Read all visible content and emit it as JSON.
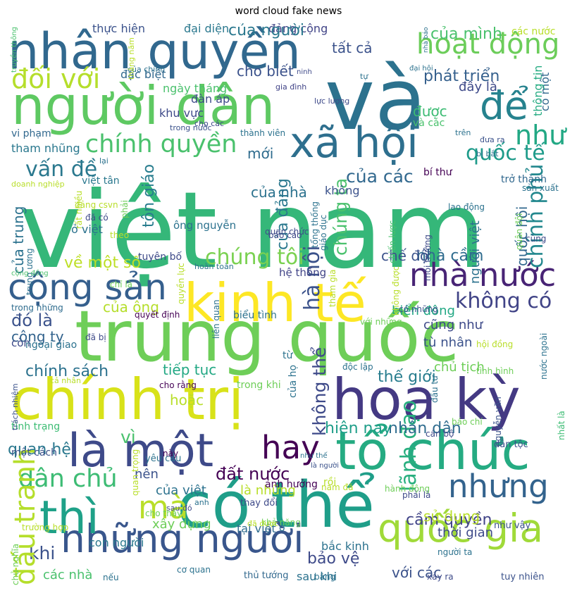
{
  "title": "word cloud fake news",
  "palette": [
    "#440154",
    "#3b528b",
    "#21908d",
    "#5dc863",
    "#fde725"
  ],
  "words": [
    {
      "t": "việt nam",
      "c": "#35b779",
      "v": false
    },
    {
      "t": "và",
      "c": "#2c728e",
      "v": false
    },
    {
      "t": "trung quốc",
      "c": "#6ece58",
      "v": false
    },
    {
      "t": "nhân quyền",
      "c": "#31688e",
      "v": false
    },
    {
      "t": "người dân",
      "c": "#5ec962",
      "v": false
    },
    {
      "t": "chính trị",
      "c": "#d8e219",
      "v": false
    },
    {
      "t": "có thể",
      "c": "#1f9e89",
      "v": false
    },
    {
      "t": "hoa kỳ",
      "c": "#443983",
      "v": false
    },
    {
      "t": "kinh tế",
      "c": "#fde725",
      "v": false
    },
    {
      "t": "tổ chức",
      "c": "#25ab82",
      "v": false
    },
    {
      "t": "là một",
      "c": "#3e4a89",
      "v": false
    },
    {
      "t": "những người",
      "c": "#39568c",
      "v": false
    },
    {
      "t": "thì",
      "c": "#1fa188",
      "v": false
    },
    {
      "t": "xã hội",
      "c": "#2e6f8e",
      "v": false
    },
    {
      "t": "để",
      "c": "#26828e",
      "v": false
    },
    {
      "t": "quốc gia",
      "c": "#a0da39",
      "v": false
    },
    {
      "t": "nhà nước",
      "c": "#482475",
      "v": false
    },
    {
      "t": "cộng sản",
      "c": "#355f8d",
      "v": false
    },
    {
      "t": "nhưng",
      "c": "#33638d",
      "v": false
    },
    {
      "t": "hoạt động",
      "c": "#6ccd5a",
      "v": false
    },
    {
      "t": "đối với",
      "c": "#b5de2b",
      "v": false
    },
    {
      "t": "chính quyền",
      "c": "#4ac16d",
      "v": false
    },
    {
      "t": "hay",
      "c": "#440154",
      "v": false
    },
    {
      "t": "mà",
      "c": "#b8de29",
      "v": false
    },
    {
      "t": "dân chủ",
      "c": "#3dbc74",
      "v": false
    },
    {
      "t": "như",
      "c": "#22a884",
      "v": false
    },
    {
      "t": "chính phủ",
      "c": "#23888e",
      "v": true
    },
    {
      "t": "lãnh đạo",
      "c": "#29af7f",
      "v": true
    },
    {
      "t": "hà nội",
      "c": "#3b528b",
      "v": true
    },
    {
      "t": "quốc tế",
      "c": "#1e9b8a",
      "v": false
    },
    {
      "t": "vấn đề",
      "c": "#2a788e",
      "v": false
    },
    {
      "t": "không có",
      "c": "#414487",
      "v": false
    },
    {
      "t": "chúng tôi",
      "c": "#7ad151",
      "v": false
    },
    {
      "t": "của các",
      "c": "#31688e",
      "v": false
    },
    {
      "t": "thế giới",
      "c": "#287d8e",
      "v": false
    },
    {
      "t": "tất cả",
      "c": "#3b528b",
      "v": false
    },
    {
      "t": "của mình",
      "c": "#4ac16d",
      "v": false
    },
    {
      "t": "phát triển",
      "c": "#35608d",
      "v": false
    },
    {
      "t": "cho biết",
      "c": "#3b528b",
      "v": false
    },
    {
      "t": "về một số",
      "c": "#bddf26",
      "v": false
    },
    {
      "t": "tiếp tục",
      "c": "#22a884",
      "v": false
    },
    {
      "t": "chính sách",
      "c": "#2c728e",
      "v": false
    },
    {
      "t": "công ty",
      "c": "#33638d",
      "v": false
    },
    {
      "t": "của ông",
      "c": "#b5de2b",
      "v": false
    },
    {
      "t": "đó là",
      "c": "#3b528b",
      "v": false
    },
    {
      "t": "nhân dân",
      "c": "#2f6c8e",
      "v": false
    },
    {
      "t": "quan hệ",
      "c": "#2a788e",
      "v": false
    },
    {
      "t": "đất nước",
      "c": "#440154",
      "v": false
    },
    {
      "t": "cầm quyền",
      "c": "#414487",
      "v": false
    },
    {
      "t": "với các",
      "c": "#3b528b",
      "v": false
    },
    {
      "t": "bảo vệ",
      "c": "#3e4a89",
      "v": false
    },
    {
      "t": "hiện nay",
      "c": "#1f9e89",
      "v": false
    },
    {
      "t": "nhà cầm",
      "c": "#2f6c8e",
      "v": false
    },
    {
      "t": "chế độ",
      "c": "#3b528b",
      "v": false
    },
    {
      "t": "cũng như",
      "c": "#3e4a89",
      "v": false
    },
    {
      "t": "tù nhân",
      "c": "#3b528b",
      "v": false
    },
    {
      "t": "chủ tịch",
      "c": "#6ece58",
      "v": false
    },
    {
      "t": "biển đông",
      "c": "#22a884",
      "v": false
    },
    {
      "t": "thời gian",
      "c": "#3e4a89",
      "v": false
    },
    {
      "t": "sau khi",
      "c": "#2c728e",
      "v": false
    },
    {
      "t": "các nhà",
      "c": "#4ac16d",
      "v": false
    },
    {
      "t": "khi",
      "c": "#3b528b",
      "v": false
    },
    {
      "t": "đấu tranh",
      "c": "#b5de2b",
      "v": true
    },
    {
      "t": "xây dựng",
      "c": "#6ece58",
      "v": false
    },
    {
      "t": "con người",
      "c": "#2a788e",
      "v": false
    },
    {
      "t": "tại việt",
      "c": "#2f6c8e",
      "v": false
    },
    {
      "t": "bắc kinh",
      "c": "#2c728e",
      "v": false
    },
    {
      "t": "người việt",
      "c": "#2c728e",
      "v": true
    },
    {
      "t": "quốc hội",
      "c": "#31688e",
      "v": true
    },
    {
      "t": "tôn giáo",
      "c": "#287d8e",
      "v": true
    },
    {
      "t": "của trung",
      "c": "#2c728e",
      "v": true
    },
    {
      "t": "của đảng",
      "c": "#2a788e",
      "v": true
    },
    {
      "t": "chúng ta",
      "c": "#4ac16d",
      "v": true
    },
    {
      "t": "không thể",
      "c": "#3e4a89",
      "v": true
    },
    {
      "t": "ở việt",
      "c": "#2c728e",
      "v": false
    },
    {
      "t": "mới",
      "c": "#2f6c8e",
      "v": false
    },
    {
      "t": "được",
      "c": "#3dbc74",
      "v": false
    },
    {
      "t": "của việt",
      "c": "#2c728e",
      "v": false
    },
    {
      "t": "là những",
      "c": "#b8de29",
      "v": false
    },
    {
      "t": "hoặc",
      "c": "#b8de29",
      "v": false
    },
    {
      "t": "vì",
      "c": "#4ac16d",
      "v": false
    },
    {
      "t": "nên",
      "c": "#3b528b",
      "v": false
    },
    {
      "t": "ngày tháng",
      "c": "#4ac16d",
      "v": false
    },
    {
      "t": "đại diện",
      "c": "#2a788e",
      "v": false
    },
    {
      "t": "thực hiện",
      "c": "#3b528b",
      "v": false
    },
    {
      "t": "đảng cộng",
      "c": "#414487",
      "v": false
    },
    {
      "t": "của người",
      "c": "#2a788e",
      "v": false
    },
    {
      "t": "các nước",
      "c": "#b8de29",
      "v": false
    },
    {
      "t": "đặc biệt",
      "c": "#31688e",
      "v": false
    },
    {
      "t": "khu vực",
      "c": "#3e4a89",
      "v": false
    },
    {
      "t": "tham nhũng",
      "c": "#2a788e",
      "v": false
    },
    {
      "t": "vi phạm",
      "c": "#31688e",
      "v": false
    },
    {
      "t": "không",
      "c": "#3b528b",
      "v": false
    },
    {
      "t": "trở thành",
      "c": "#31688e",
      "v": false
    },
    {
      "t": "bí thư",
      "c": "#440154",
      "v": false
    },
    {
      "t": "đây là",
      "c": "#3e4a89",
      "v": false
    },
    {
      "t": "có một",
      "c": "#31688e",
      "v": true
    },
    {
      "t": "thông tin",
      "c": "#25ab82",
      "v": true
    },
    {
      "t": "hệ thống",
      "c": "#414487",
      "v": false
    },
    {
      "t": "ông nguyễn",
      "c": "#2c728e",
      "v": false
    },
    {
      "t": "tuyên bố",
      "c": "#3e4a89",
      "v": false
    },
    {
      "t": "việt tân",
      "c": "#2a788e",
      "v": false
    },
    {
      "t": "còn",
      "c": "#3e4a89",
      "v": false
    },
    {
      "t": "ngoại giao",
      "c": "#2c728e",
      "v": false
    },
    {
      "t": "trong những",
      "c": "#2f6c8e",
      "v": false
    },
    {
      "t": "tình trạng",
      "c": "#3dbc74",
      "v": false
    },
    {
      "t": "một cách",
      "c": "#3b528b",
      "v": false
    },
    {
      "t": "cho rằng",
      "c": "#440154",
      "v": false
    },
    {
      "t": "trong khi",
      "c": "#6ece58",
      "v": false
    },
    {
      "t": "độc lập",
      "c": "#2c728e",
      "v": false
    },
    {
      "t": "ảnh hưởng",
      "c": "#440154",
      "v": false
    },
    {
      "t": "yêu cầu",
      "c": "#2c728e",
      "v": false
    },
    {
      "t": "dân tộc",
      "c": "#3b528b",
      "v": false
    },
    {
      "t": "thay đổi",
      "c": "#3e4a89",
      "v": false
    },
    {
      "t": "tuy nhiên",
      "c": "#3b528b",
      "v": false
    },
    {
      "t": "thủ tướng",
      "c": "#31688e",
      "v": false
    },
    {
      "t": "cơ quan",
      "c": "#2c728e",
      "v": false
    },
    {
      "t": "như vậy",
      "c": "#3b528b",
      "v": false
    },
    {
      "t": "người ta",
      "c": "#2c728e",
      "v": false
    },
    {
      "t": "biểu tình",
      "c": "#2c728e",
      "v": false
    },
    {
      "t": "quyết định",
      "c": "#440154",
      "v": false
    },
    {
      "t": "nhất là",
      "c": "#3dbc74",
      "v": true
    },
    {
      "t": "nguyễn văn",
      "c": "#3b528b",
      "v": true
    },
    {
      "t": "quân đội",
      "c": "#6ece58",
      "v": true
    },
    {
      "t": "môi trường",
      "c": "#3e4a89",
      "v": true
    },
    {
      "t": "chiến lược",
      "c": "#4ac16d",
      "v": true
    },
    {
      "t": "lao động",
      "c": "#2c728e",
      "v": false
    },
    {
      "t": "gia đình",
      "c": "#414487",
      "v": false
    },
    {
      "t": "thành viên",
      "c": "#2c728e",
      "v": false
    },
    {
      "t": "doanh nghiệp",
      "c": "#b8de29",
      "v": false
    },
    {
      "t": "trung ương",
      "c": "#2c728e",
      "v": true
    },
    {
      "t": "hoàn toàn",
      "c": "#2c728e",
      "v": false
    },
    {
      "t": "lực lượng",
      "c": "#3e4a89",
      "v": false
    },
    {
      "t": "trên",
      "c": "#2c728e",
      "v": false
    },
    {
      "t": "đưa ra",
      "c": "#3b528b",
      "v": false
    },
    {
      "t": "bị bắt",
      "c": "#2c728e",
      "v": false
    },
    {
      "t": "sản xuất",
      "c": "#2c728e",
      "v": false
    },
    {
      "t": "cho các",
      "c": "#3e4a89",
      "v": false
    },
    {
      "t": "trong nước",
      "c": "#3b528b",
      "v": false
    },
    {
      "t": "và các",
      "c": "#4ac16d",
      "v": false
    },
    {
      "t": "từ",
      "c": "#2c728e",
      "v": false
    },
    {
      "t": "của họ",
      "c": "#2c728e",
      "v": true
    },
    {
      "t": "đã bị",
      "c": "#3e4a89",
      "v": false
    },
    {
      "t": "liên quan",
      "c": "#2c728e",
      "v": true
    },
    {
      "t": "với những",
      "c": "#6ece58",
      "v": false
    },
    {
      "t": "tình hình",
      "c": "#6ece58",
      "v": false
    },
    {
      "t": "có những",
      "c": "#3b528b",
      "v": false
    },
    {
      "t": "hội đồng",
      "c": "#b8de29",
      "v": false
    },
    {
      "t": "nước ngoài",
      "c": "#2c728e",
      "v": true
    },
    {
      "t": "đầu tư",
      "c": "#2c728e",
      "v": true
    },
    {
      "t": "báo chí",
      "c": "#6ece58",
      "v": false
    },
    {
      "t": "cán bộ",
      "c": "#3e4a89",
      "v": false
    },
    {
      "t": "khả năng",
      "c": "#6ece58",
      "v": false
    },
    {
      "t": "nam đã",
      "c": "#b8de29",
      "v": false
    },
    {
      "t": "hành động",
      "c": "#6ece58",
      "v": false
    },
    {
      "t": "phải là",
      "c": "#3e4a89",
      "v": false
    },
    {
      "t": "xảy ra",
      "c": "#3e4a89",
      "v": false
    },
    {
      "t": "bằng",
      "c": "#2c728e",
      "v": false
    },
    {
      "t": "rồi",
      "c": "#b8de29",
      "v": false
    },
    {
      "t": "ở",
      "c": "#2c728e",
      "v": false
    },
    {
      "t": "sử dụng",
      "c": "#b8de29",
      "v": false
    },
    {
      "t": "nếu",
      "c": "#2c728e",
      "v": false
    },
    {
      "t": "chủ nghĩa",
      "c": "#6ece58",
      "v": true
    },
    {
      "t": "trường hợp",
      "c": "#b8de29",
      "v": false
    },
    {
      "t": "sau đó",
      "c": "#3e4a89",
      "v": false
    },
    {
      "t": "anh",
      "c": "#2c728e",
      "v": false
    },
    {
      "t": "cho thấy",
      "c": "#6ece58",
      "v": false
    },
    {
      "t": "quan trọng",
      "c": "#b8de29",
      "v": true
    },
    {
      "t": "này",
      "c": "#440154",
      "v": false
    },
    {
      "t": "đã được",
      "c": "#b8de29",
      "v": false
    },
    {
      "t": "như thế",
      "c": "#2c728e",
      "v": false
    },
    {
      "t": "là người",
      "c": "#3b528b",
      "v": false
    },
    {
      "t": "trách nhiệm",
      "c": "#3b528b",
      "v": true
    },
    {
      "t": "cả nhân",
      "c": "#b8de29",
      "v": false
    },
    {
      "t": "chỉ là",
      "c": "#6ece58",
      "v": false
    },
    {
      "t": "cộng đồng",
      "c": "#4ac16d",
      "v": false
    },
    {
      "t": "quyền lực",
      "c": "#b8de29",
      "v": true
    },
    {
      "t": "không được",
      "c": "#b8de29",
      "v": true
    },
    {
      "t": "tham gia",
      "c": "#b8de29",
      "v": true
    },
    {
      "t": "giáo dục",
      "c": "#2c728e",
      "v": true
    },
    {
      "t": "tổng thống",
      "c": "#2c728e",
      "v": true
    },
    {
      "t": "quan chức",
      "c": "#3e4a89",
      "v": false
    },
    {
      "t": "báo cáo",
      "c": "#3e4a89",
      "v": false
    },
    {
      "t": "cùng",
      "c": "#3e4a89",
      "v": false
    },
    {
      "t": "đã có",
      "c": "#3e4a89",
      "v": false
    },
    {
      "t": "rất nhiều",
      "c": "#b8de29",
      "v": true
    },
    {
      "t": "đảng csvn",
      "c": "#b8de29",
      "v": false
    },
    {
      "t": "theo",
      "c": "#b8de29",
      "v": false
    },
    {
      "t": "phải",
      "c": "#6ece58",
      "v": true
    },
    {
      "t": "lại",
      "c": "#2c728e",
      "v": false
    },
    {
      "t": "tự",
      "c": "#2c728e",
      "v": false
    },
    {
      "t": "đại hội",
      "c": "#2c728e",
      "v": false
    },
    {
      "t": "đàn áp",
      "c": "#3e4a89",
      "v": false
    },
    {
      "t": "của nhà",
      "c": "#2c728e",
      "v": false
    },
    {
      "t": "của chính",
      "c": "#2c728e",
      "v": false
    },
    {
      "t": "tháng năm",
      "c": "#b8de29",
      "v": true
    },
    {
      "t": "truyền thông",
      "c": "#4ac16d",
      "v": true
    },
    {
      "t": "ninh",
      "c": "#3e4a89",
      "v": false
    },
    {
      "t": "nhà báo",
      "c": "#2c728e",
      "v": true
    }
  ]
}
